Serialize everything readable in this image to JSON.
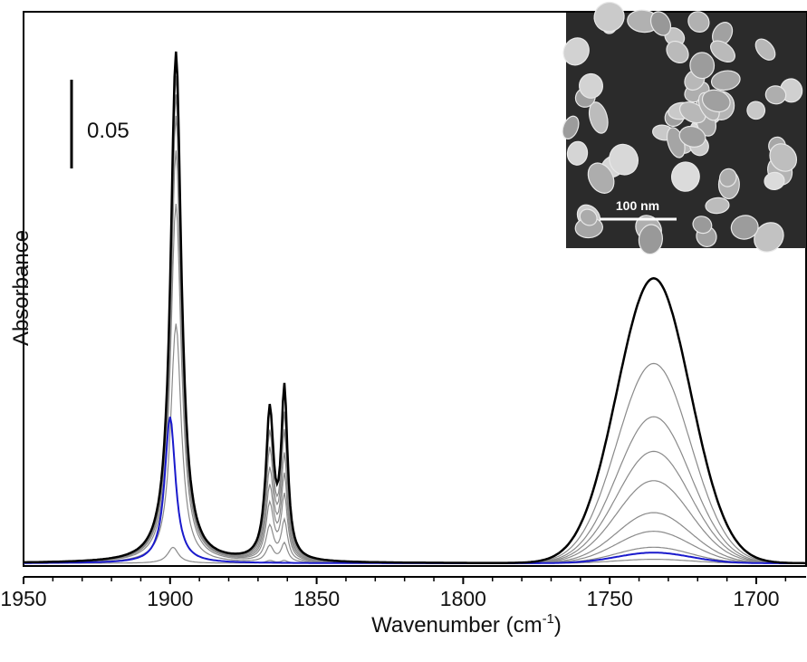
{
  "chart_data": {
    "type": "line",
    "xlabel": "Wavenumber (cm",
    "xlabel_superscript": "-1",
    "xlabel_suffix": ")",
    "ylabel": "Absorbance",
    "xlim": [
      1950,
      1683
    ],
    "x_reversed": true,
    "x_ticks": [
      1950,
      1900,
      1850,
      1800,
      1750,
      1700
    ],
    "y_ticks": "none",
    "ylim": [
      0,
      0.198
    ],
    "scale_bar": {
      "label": "0.05",
      "value": 0.05
    },
    "grid": false,
    "legend": "none",
    "inset": {
      "type": "SEM micrograph",
      "scale_label": "100 nm"
    },
    "colors": {
      "final": "#000000",
      "intermediate": "#8a8a8a",
      "initial": "#1a1acc",
      "inset_bg": "#2b2b2b"
    },
    "peaks": [
      {
        "center": 1898,
        "width": 2.2,
        "shape": "lorentzian"
      },
      {
        "center": 1866,
        "width": 1.6,
        "shape": "lorentzian"
      },
      {
        "center": 1861,
        "width": 1.3,
        "shape": "lorentzian"
      },
      {
        "center": 1735,
        "width": 12.5,
        "shape": "gaussian"
      }
    ],
    "series": [
      {
        "role": "initial",
        "color": "#1a1acc",
        "amplitudes": [
          0.055,
          0,
          0,
          0.004
        ],
        "center_shift": [
          2,
          0,
          0,
          0
        ]
      },
      {
        "role": "intermediate",
        "color": "#8a8a8a",
        "amplitudes": [
          0.006,
          0.001,
          0.001,
          0.0015
        ],
        "center_shift": [
          1,
          0,
          0,
          0
        ]
      },
      {
        "role": "intermediate",
        "color": "#8a8a8a",
        "amplitudes": [
          0.09,
          0.006,
          0.007,
          0.006
        ],
        "center_shift": [
          0,
          0,
          0,
          0
        ]
      },
      {
        "role": "intermediate",
        "color": "#8a8a8a",
        "amplitudes": [
          0.135,
          0.013,
          0.015,
          0.012
        ],
        "center_shift": [
          0,
          0,
          0,
          0
        ]
      },
      {
        "role": "intermediate",
        "color": "#8a8a8a",
        "amplitudes": [
          0.155,
          0.021,
          0.024,
          0.019
        ],
        "center_shift": [
          0,
          0,
          0,
          0
        ]
      },
      {
        "role": "intermediate",
        "color": "#8a8a8a",
        "amplitudes": [
          0.168,
          0.027,
          0.031,
          0.031
        ],
        "center_shift": [
          0,
          0,
          0,
          0
        ]
      },
      {
        "role": "intermediate",
        "color": "#8a8a8a",
        "amplitudes": [
          0.176,
          0.033,
          0.038,
          0.042
        ],
        "center_shift": [
          0,
          0,
          0,
          0
        ]
      },
      {
        "role": "intermediate",
        "color": "#8a8a8a",
        "amplitudes": [
          0.183,
          0.04,
          0.046,
          0.055
        ],
        "center_shift": [
          0,
          0,
          0,
          0
        ]
      },
      {
        "role": "intermediate",
        "color": "#8a8a8a",
        "amplitudes": [
          0.188,
          0.046,
          0.052,
          0.075
        ],
        "center_shift": [
          0,
          0,
          0,
          0
        ]
      },
      {
        "role": "final",
        "color": "#000000",
        "amplitudes": [
          0.192,
          0.055,
          0.062,
          0.107
        ],
        "center_shift": [
          0,
          0,
          0,
          0
        ]
      }
    ]
  }
}
